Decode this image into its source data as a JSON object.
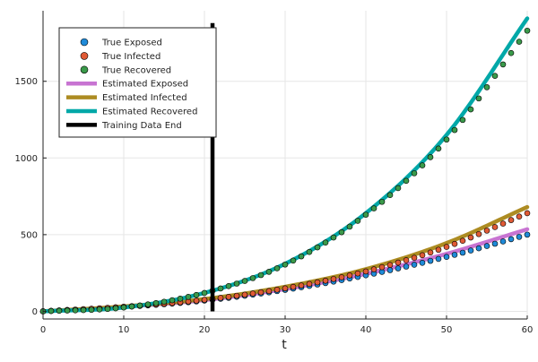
{
  "chart_data": {
    "type": "scatter",
    "title": "",
    "xlabel": "t",
    "ylabel": "",
    "xlim": [
      0,
      60
    ],
    "ylim": [
      -50,
      1960
    ],
    "x_ticks": [
      "0",
      "10",
      "20",
      "30",
      "40",
      "50",
      "60"
    ],
    "y_ticks": [
      "0",
      "500",
      "1000",
      "1500"
    ],
    "grid": true,
    "legend_position": "top-left",
    "vertical_marker": {
      "x": 21,
      "y_range": [
        0,
        1880
      ],
      "name": "Training Data End",
      "color": "#000000"
    },
    "series": [
      {
        "name": "True Exposed",
        "kind": "points",
        "color": "#1f8ad8",
        "function": "exposed"
      },
      {
        "name": "True Infected",
        "kind": "points",
        "color": "#e05a35",
        "function": "infected"
      },
      {
        "name": "True Recovered",
        "kind": "points",
        "color": "#3a9a4a",
        "function": "recovered_true"
      },
      {
        "name": "Estimated Exposed",
        "kind": "line",
        "color": "#c874d2",
        "function": "exposed_est"
      },
      {
        "name": "Estimated Infected",
        "kind": "line",
        "color": "#ad8c22",
        "function": "infected_est"
      },
      {
        "name": "Estimated Recovered",
        "kind": "line",
        "color": "#00a8a8",
        "function": "recovered"
      }
    ],
    "sample_points": {
      "t": [
        0,
        10,
        20,
        30,
        40,
        50,
        60
      ],
      "exposed": [
        0,
        28,
        70,
        140,
        235,
        355,
        500
      ],
      "infected": [
        0,
        30,
        75,
        150,
        260,
        420,
        640
      ],
      "recovered": [
        0,
        25,
        120,
        310,
        640,
        1150,
        1910
      ],
      "recovered_true": [
        0,
        25,
        120,
        305,
        630,
        1120,
        1830
      ],
      "exposed_est": [
        0,
        30,
        73,
        145,
        245,
        375,
        535
      ],
      "infected_est": [
        0,
        32,
        80,
        160,
        275,
        445,
        680
      ]
    }
  }
}
